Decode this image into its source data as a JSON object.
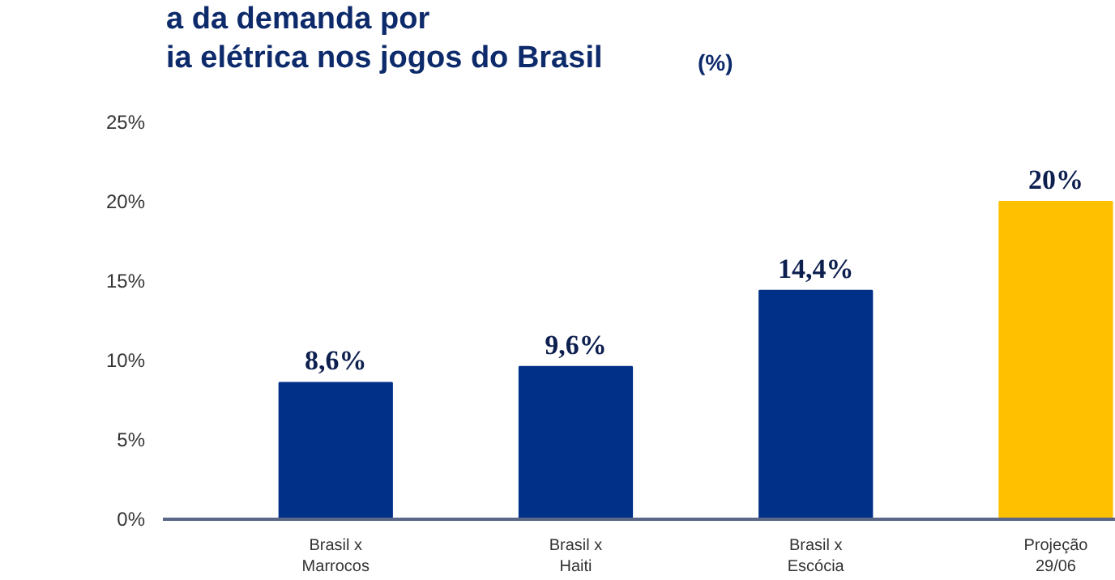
{
  "chart_data": {
    "type": "bar",
    "title": "a da demanda por\nia elétrica nos jogos do Brasil",
    "subtitle": "(%)",
    "categories": [
      "Brasil x\nMarrocos",
      "Brasil x\nHaiti",
      "Brasil x\nEscócia",
      "Projeção\n29/06"
    ],
    "values": [
      8.6,
      9.6,
      14.4,
      20
    ],
    "colors": [
      "#003087",
      "#003087",
      "#003087",
      "#ffc000"
    ],
    "value_labels": [
      "8,6%",
      "9,6%",
      "14,4%",
      "20%"
    ],
    "ylim": [
      0,
      25
    ],
    "yticks": [
      {
        "value": 0,
        "label": "0%"
      },
      {
        "value": 5,
        "label": "5%"
      },
      {
        "value": 10,
        "label": "10%"
      },
      {
        "value": 15,
        "label": "15%"
      },
      {
        "value": 20,
        "label": "20%"
      },
      {
        "value": 25,
        "label": "25%"
      }
    ],
    "grid": false
  }
}
